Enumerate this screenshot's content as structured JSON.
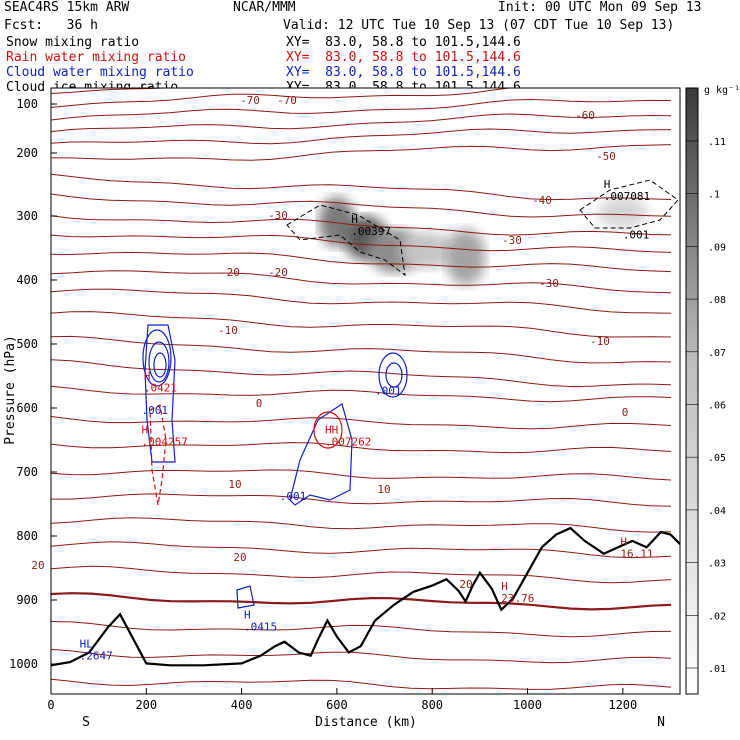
{
  "header": {
    "model": "SEAC4RS 15km ARW",
    "org": "NCAR/MMM",
    "init": "Init: 00 UTC Mon 09 Sep 13",
    "fcst": "Fcst:   36 h",
    "valid": "Valid: 12 UTC Tue 10 Sep 13 (07 CDT Tue 10 Sep 13)",
    "fields": [
      {
        "label": "Snow mixing ratio",
        "xy": "XY=  83.0, 58.8 to 101.5,144.6",
        "color": "#000000"
      },
      {
        "label": "Rain water mixing ratio",
        "xy": "XY=  83.0, 58.8 to 101.5,144.6",
        "color": "#d01010"
      },
      {
        "label": "Cloud water mixing ratio",
        "xy": "XY=  83.0, 58.8 to 101.5,144.6",
        "color": "#1020c0"
      },
      {
        "label": "Cloud ice mixing ratio",
        "xy": "XY=  83.0, 58.8 to 101.5,144.6",
        "color": "#000000"
      }
    ]
  },
  "chart_data": {
    "type": "contour",
    "ylabel": "Pressure (hPa)",
    "xlabel": "Distance (km)",
    "xlim": [
      0,
      1320
    ],
    "ylim": [
      1050,
      100
    ],
    "xticks": [
      "0",
      "200",
      "400",
      "600",
      "800",
      "1000",
      "1200"
    ],
    "yticks": [
      "100",
      "200",
      "300",
      "400",
      "500",
      "600",
      "700",
      "800",
      "900",
      "1000"
    ],
    "end_labels": {
      "left": "S",
      "right": "N"
    },
    "colorbar": {
      "unit": "g kg⁻¹",
      "levels": [
        ".01",
        ".02",
        ".03",
        ".04",
        ".05",
        ".06",
        ".07",
        ".08",
        ".09",
        ".1",
        ".11"
      ]
    },
    "temperature_contour_labels": [
      "-70",
      "-70",
      "-60",
      "-50",
      "-40",
      "-30",
      "-30",
      "-30",
      "-20",
      "-20",
      "-10",
      "-10",
      "0",
      "0",
      "10",
      "10",
      "20",
      "20",
      "20"
    ],
    "extrema_labels": [
      {
        "mark": "H",
        "value": ".00397",
        "color": "#000000",
        "x": 630,
        "p": 315
      },
      {
        "mark": "H",
        "value": ".007081",
        "color": "#000000",
        "x": 1160,
        "p": 260
      },
      {
        "mark": "",
        "value": ".001",
        "color": "#000000",
        "x": 1200,
        "p": 320
      },
      {
        "mark": "H",
        "value": ".0421",
        "color": "#d01010",
        "x": 195,
        "p": 560
      },
      {
        "mark": "",
        "value": ".001",
        "color": "#1020c0",
        "x": 190,
        "p": 595
      },
      {
        "mark": "H",
        "value": ".004257",
        "color": "#d01010",
        "x": 190,
        "p": 645
      },
      {
        "mark": "HH",
        "value": ".007262",
        "color": "#d01010",
        "x": 575,
        "p": 645
      },
      {
        "mark": "",
        "value": ".001",
        "color": "#1020c0",
        "x": 480,
        "p": 730
      },
      {
        "mark": "",
        "value": ".001",
        "color": "#1020c0",
        "x": 680,
        "p": 565
      },
      {
        "mark": "H",
        "value": ".0415",
        "color": "#1020c0",
        "x": 405,
        "p": 935
      },
      {
        "mark": "HL",
        "value": ".2647",
        "color": "#1020c0",
        "x": 60,
        "p": 980
      },
      {
        "mark": "H",
        "value": "23.76",
        "color": "#a02020",
        "x": 945,
        "p": 890
      },
      {
        "mark": "H",
        "value": "16.11",
        "color": "#a02020",
        "x": 1195,
        "p": 820
      }
    ],
    "terrain_pressure": [
      [
        0,
        1005
      ],
      [
        40,
        1000
      ],
      [
        80,
        985
      ],
      [
        120,
        945
      ],
      [
        145,
        925
      ],
      [
        170,
        960
      ],
      [
        200,
        1002
      ],
      [
        250,
        1005
      ],
      [
        320,
        1005
      ],
      [
        400,
        1002
      ],
      [
        440,
        990
      ],
      [
        470,
        975
      ],
      [
        490,
        968
      ],
      [
        520,
        985
      ],
      [
        545,
        990
      ],
      [
        560,
        965
      ],
      [
        580,
        935
      ],
      [
        600,
        960
      ],
      [
        625,
        985
      ],
      [
        650,
        975
      ],
      [
        680,
        935
      ],
      [
        720,
        910
      ],
      [
        760,
        890
      ],
      [
        800,
        880
      ],
      [
        830,
        870
      ],
      [
        855,
        888
      ],
      [
        870,
        905
      ],
      [
        885,
        880
      ],
      [
        900,
        860
      ],
      [
        925,
        885
      ],
      [
        945,
        918
      ],
      [
        970,
        900
      ],
      [
        1000,
        860
      ],
      [
        1030,
        820
      ],
      [
        1060,
        800
      ],
      [
        1090,
        790
      ],
      [
        1120,
        810
      ],
      [
        1160,
        830
      ],
      [
        1190,
        820
      ],
      [
        1220,
        810
      ],
      [
        1250,
        820
      ],
      [
        1280,
        796
      ],
      [
        1300,
        800
      ],
      [
        1320,
        815
      ]
    ],
    "snow_blobs": [
      {
        "x": 600,
        "p": 310,
        "rx": 18,
        "ry": 25,
        "intensity": 0.8
      },
      {
        "x": 660,
        "p": 335,
        "rx": 22,
        "ry": 22,
        "intensity": 1.0
      },
      {
        "x": 720,
        "p": 355,
        "rx": 26,
        "ry": 22,
        "intensity": 0.7
      },
      {
        "x": 790,
        "p": 355,
        "rx": 28,
        "ry": 18,
        "intensity": 0.35
      },
      {
        "x": 870,
        "p": 365,
        "rx": 20,
        "ry": 28,
        "intensity": 0.55
      },
      {
        "x": 1200,
        "p": 295,
        "rx": 25,
        "ry": 16,
        "intensity": 0.25
      }
    ]
  }
}
